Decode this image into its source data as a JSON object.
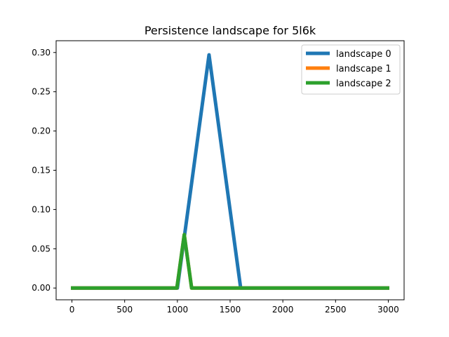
{
  "chart_data": {
    "type": "line",
    "title": "Persistence landscape for 5l6k",
    "xlabel": "",
    "ylabel": "",
    "xlim": [
      -150,
      3150
    ],
    "ylim": [
      -0.015,
      0.315
    ],
    "xticks": [
      0,
      500,
      1000,
      1500,
      2000,
      2500,
      3000
    ],
    "xtick_labels": [
      "0",
      "500",
      "1000",
      "1500",
      "2000",
      "2500",
      "3000"
    ],
    "yticks": [
      0.0,
      0.05,
      0.1,
      0.15,
      0.2,
      0.25,
      0.3
    ],
    "ytick_labels": [
      "0.00",
      "0.05",
      "0.10",
      "0.15",
      "0.20",
      "0.25",
      "0.30"
    ],
    "grid": false,
    "legend_position": "top-right",
    "series": [
      {
        "name": "landscape 0",
        "color": "#1f77b4",
        "x": [
          -10,
          1000,
          1300,
          1600,
          3010
        ],
        "y": [
          0,
          0,
          0.297,
          0,
          0
        ]
      },
      {
        "name": "landscape 1",
        "color": "#ff7f0e",
        "x": [
          -10,
          995,
          1065,
          1135,
          3010
        ],
        "y": [
          0,
          0,
          0.068,
          0,
          0
        ]
      },
      {
        "name": "landscape 2",
        "color": "#2ca02c",
        "x": [
          -10,
          995,
          1065,
          1135,
          3010
        ],
        "y": [
          0,
          0,
          0.068,
          0,
          0
        ]
      }
    ]
  }
}
